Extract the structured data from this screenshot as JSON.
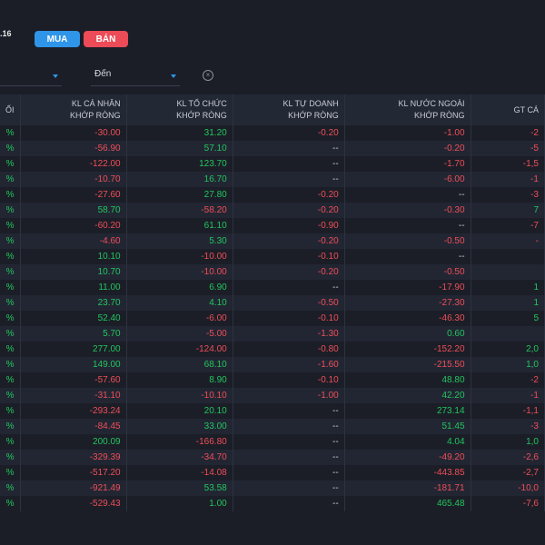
{
  "header": {
    "price_fragment": ".16"
  },
  "actions": {
    "buy_label": "MUA",
    "sell_label": "BÁN"
  },
  "filters": {
    "to_label": "Đến",
    "clear_icon": "close-circle-icon"
  },
  "colors": {
    "up": "#22c55e",
    "down": "#ef4e58",
    "buy": "#2f95e8",
    "sell": "#ec4b57"
  },
  "table": {
    "columns": [
      {
        "line1": "ỐI",
        "line2": ""
      },
      {
        "line1": "KL CÁ NHÂN",
        "line2": "KHỚP RÒNG"
      },
      {
        "line1": "KL TỔ CHỨC",
        "line2": "KHỚP RÒNG"
      },
      {
        "line1": "KL TỰ DOANH",
        "line2": "KHỚP RÒNG"
      },
      {
        "line1": "KL NƯỚC NGOÀI",
        "line2": "KHỚP RÒNG"
      },
      {
        "line1": "GT CÁ",
        "line2": ""
      }
    ],
    "rows": [
      [
        "%",
        "-30.00",
        "31.20",
        "-0.20",
        "-1.00",
        "-2"
      ],
      [
        "%",
        "-56.90",
        "57.10",
        "--",
        "-0.20",
        "-5"
      ],
      [
        "%",
        "-122.00",
        "123.70",
        "--",
        "-1.70",
        "-1,5"
      ],
      [
        "%",
        "-10.70",
        "16.70",
        "--",
        "-6.00",
        "-1"
      ],
      [
        "%",
        "-27.60",
        "27.80",
        "-0.20",
        "--",
        "-3"
      ],
      [
        "%",
        "58.70",
        "-58.20",
        "-0.20",
        "-0.30",
        "7"
      ],
      [
        "%",
        "-60.20",
        "61.10",
        "-0.90",
        "--",
        "-7"
      ],
      [
        "%",
        "-4.60",
        "5.30",
        "-0.20",
        "-0.50",
        "-"
      ],
      [
        "%",
        "10.10",
        "-10.00",
        "-0.10",
        "--",
        ""
      ],
      [
        "%",
        "10.70",
        "-10.00",
        "-0.20",
        "-0.50",
        ""
      ],
      [
        "%",
        "11.00",
        "6.90",
        "--",
        "-17.90",
        "1"
      ],
      [
        "%",
        "23.70",
        "4.10",
        "-0.50",
        "-27.30",
        "1"
      ],
      [
        "%",
        "52.40",
        "-6.00",
        "-0.10",
        "-46.30",
        "5"
      ],
      [
        "%",
        "5.70",
        "-5.00",
        "-1.30",
        "0.60",
        ""
      ],
      [
        "%",
        "277.00",
        "-124.00",
        "-0.80",
        "-152.20",
        "2,0"
      ],
      [
        "%",
        "149.00",
        "68.10",
        "-1.60",
        "-215.50",
        "1,0"
      ],
      [
        "%",
        "-57.60",
        "8.90",
        "-0.10",
        "48.80",
        "-2"
      ],
      [
        "%",
        "-31.10",
        "-10.10",
        "-1.00",
        "42.20",
        "-1"
      ],
      [
        "%",
        "-293.24",
        "20.10",
        "--",
        "273.14",
        "-1,1"
      ],
      [
        "%",
        "-84.45",
        "33.00",
        "--",
        "51.45",
        "-3"
      ],
      [
        "%",
        "200.09",
        "-166.80",
        "--",
        "4.04",
        "1,0"
      ],
      [
        "%",
        "-329.39",
        "-34.70",
        "--",
        "-49.20",
        "-2,6"
      ],
      [
        "%",
        "-517.20",
        "-14.08",
        "--",
        "-443.85",
        "-2,7"
      ],
      [
        "%",
        "-921.49",
        "53.58",
        "--",
        "-181.71",
        "-10,0"
      ],
      [
        "%",
        "-529.43",
        "1.00",
        "--",
        "465.48",
        "-7,6"
      ]
    ]
  }
}
